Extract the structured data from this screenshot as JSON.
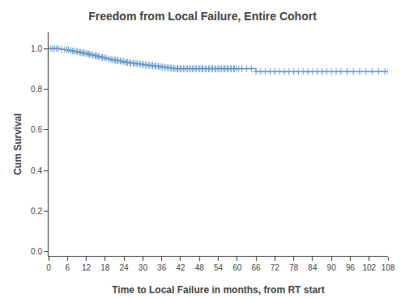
{
  "chart_data": {
    "type": "line",
    "title": "Freedom from Local Failure, Entire Cohort",
    "xlabel": "Time to Local Failure in months, from RT start",
    "ylabel": "Cum Survival",
    "xlim": [
      0,
      108
    ],
    "ylim": [
      -0.02,
      1.08
    ],
    "xticks": [
      0,
      6,
      12,
      18,
      24,
      30,
      36,
      42,
      48,
      54,
      60,
      66,
      72,
      78,
      84,
      90,
      96,
      102,
      108
    ],
    "yticks": [
      {
        "value": 0.0,
        "label": "0.0"
      },
      0.2,
      0.4,
      0.6,
      0.8,
      {
        "value": 1.0,
        "label": "1.0"
      }
    ],
    "grid": false,
    "series": [
      {
        "type": "line",
        "line_style": "step",
        "color": "#6699CC",
        "x": [
          0,
          1.0,
          2.0,
          3.0,
          3.5,
          4.0,
          4.5,
          5.0,
          5.5,
          6.0,
          6.5,
          7.0,
          7.5,
          8.0,
          8.5,
          9.0,
          9.5,
          10.0,
          10.5,
          11.0,
          11.5,
          12.0,
          12.5,
          13.0,
          13.5,
          14.0,
          14.5,
          15.0,
          15.5,
          16.0,
          16.5,
          17.0,
          17.5,
          18.0,
          19.0,
          20.0,
          21.0,
          22.0,
          23.0,
          24.0,
          25.0,
          26.0,
          27.0,
          28.0,
          29.0,
          30.0,
          31.0,
          32.0,
          33.0,
          34.0,
          35.0,
          36.0,
          37.0,
          38.0,
          39.0,
          40.0,
          41.0,
          42.0,
          43.0,
          44.0,
          45.0,
          46.0,
          47.0,
          48.0,
          49.0,
          50.0,
          51.0,
          52.0,
          53.0,
          54.0,
          55.0,
          56.0,
          57.0,
          58.0,
          59.0,
          60.0,
          61.0,
          62.0,
          63.0,
          64.0,
          65.0,
          66.0,
          67.0,
          68.0,
          69.0,
          70.0,
          71.0,
          72.0,
          73.0,
          74.0,
          75.0,
          76.0,
          77.0,
          78.0,
          80.0,
          82.0,
          84.0,
          86.0,
          88.0,
          90.0,
          92.0,
          94.0,
          96.0,
          98.0,
          100.0,
          102.0,
          104.0,
          106.0,
          108.0
        ],
        "values": [
          1.0,
          1.0,
          1.0,
          1.0,
          0.998,
          0.997,
          0.996,
          0.995,
          0.994,
          0.993,
          0.991,
          0.99,
          0.988,
          0.987,
          0.985,
          0.984,
          0.982,
          0.981,
          0.979,
          0.978,
          0.977,
          0.976,
          0.974,
          0.972,
          0.97,
          0.968,
          0.966,
          0.964,
          0.962,
          0.96,
          0.958,
          0.956,
          0.955,
          0.953,
          0.948,
          0.944,
          0.942,
          0.94,
          0.937,
          0.933,
          0.931,
          0.929,
          0.927,
          0.925,
          0.923,
          0.921,
          0.919,
          0.917,
          0.915,
          0.913,
          0.911,
          0.909,
          0.907,
          0.905,
          0.903,
          0.901,
          0.901,
          0.901,
          0.901,
          0.901,
          0.901,
          0.901,
          0.901,
          0.901,
          0.901,
          0.901,
          0.901,
          0.901,
          0.901,
          0.901,
          0.901,
          0.901,
          0.901,
          0.901,
          0.901,
          0.901,
          0.901,
          0.901,
          0.901,
          0.901,
          0.901,
          0.887,
          0.887,
          0.887,
          0.887,
          0.887,
          0.887,
          0.887,
          0.887,
          0.887,
          0.887,
          0.887,
          0.887,
          0.887,
          0.887,
          0.887,
          0.887,
          0.887,
          0.887,
          0.887,
          0.887,
          0.887,
          0.887,
          0.887,
          0.887,
          0.887,
          0.887,
          0.887,
          0.887
        ]
      },
      {
        "type": "scatter",
        "marker": "+",
        "color": "#6699CC",
        "x": [
          0.5,
          1.2,
          1.8,
          2.5,
          3.1,
          4.2,
          5.1,
          5.8,
          6.3,
          7.0,
          7.6,
          8.1,
          8.8,
          9.2,
          9.9,
          10.3,
          10.9,
          11.1,
          11.6,
          12.2,
          12.7,
          13.0,
          13.6,
          14.1,
          14.8,
          15.2,
          15.7,
          16.1,
          16.9,
          17.2,
          17.8,
          18.3,
          19.1,
          19.8,
          20.2,
          20.9,
          21.3,
          21.9,
          22.1,
          22.8,
          23.2,
          23.8,
          24.3,
          24.9,
          25.1,
          25.8,
          26.2,
          26.9,
          27.1,
          27.8,
          28.2,
          28.9,
          29.1,
          29.8,
          30.2,
          30.9,
          31.1,
          31.8,
          32.2,
          32.9,
          33.1,
          33.8,
          34.2,
          34.9,
          35.1,
          35.8,
          36.2,
          36.9,
          37.1,
          37.8,
          38.2,
          38.9,
          39.1,
          39.8,
          40.2,
          40.9,
          41.1,
          41.8,
          42.2,
          42.9,
          43.1,
          43.8,
          44.2,
          44.9,
          45.1,
          45.8,
          46.2,
          46.9,
          47.1,
          47.8,
          48.2,
          48.9,
          49.1,
          49.8,
          50.2,
          50.9,
          51.1,
          51.8,
          52.2,
          52.9,
          53.1,
          53.8,
          54.2,
          54.9,
          55.1,
          55.8,
          56.2,
          56.9,
          57.1,
          57.8,
          58.2,
          58.9,
          59.1,
          59.8,
          60.5,
          61.5,
          63.0,
          64.5,
          66.0,
          67.5,
          69.0,
          70.5,
          72.0,
          73.5,
          75.0,
          76.5,
          78.0,
          79.5,
          81.0,
          82.5,
          84.0,
          85.5,
          87.0,
          88.5,
          90.0,
          91.5,
          93.0,
          95.0,
          97.0,
          99.0,
          101.0,
          103.0,
          105.0,
          107.0,
          108.0
        ],
        "values": [
          1.0,
          1.0,
          1.0,
          1.0,
          1.0,
          0.997,
          0.995,
          0.994,
          0.993,
          0.99,
          0.988,
          0.987,
          0.985,
          0.984,
          0.982,
          0.981,
          0.979,
          0.978,
          0.977,
          0.976,
          0.974,
          0.972,
          0.97,
          0.968,
          0.966,
          0.964,
          0.962,
          0.96,
          0.958,
          0.956,
          0.955,
          0.953,
          0.948,
          0.948,
          0.944,
          0.944,
          0.942,
          0.942,
          0.94,
          0.94,
          0.937,
          0.937,
          0.933,
          0.933,
          0.931,
          0.931,
          0.929,
          0.929,
          0.927,
          0.927,
          0.925,
          0.925,
          0.923,
          0.923,
          0.921,
          0.921,
          0.919,
          0.919,
          0.917,
          0.917,
          0.915,
          0.915,
          0.913,
          0.913,
          0.911,
          0.911,
          0.909,
          0.909,
          0.907,
          0.907,
          0.905,
          0.905,
          0.903,
          0.903,
          0.901,
          0.901,
          0.901,
          0.901,
          0.901,
          0.901,
          0.901,
          0.901,
          0.901,
          0.901,
          0.901,
          0.901,
          0.901,
          0.901,
          0.901,
          0.901,
          0.901,
          0.901,
          0.901,
          0.901,
          0.901,
          0.901,
          0.901,
          0.901,
          0.901,
          0.901,
          0.901,
          0.901,
          0.901,
          0.901,
          0.901,
          0.901,
          0.901,
          0.901,
          0.901,
          0.901,
          0.901,
          0.901,
          0.901,
          0.901,
          0.901,
          0.901,
          0.901,
          0.901,
          0.887,
          0.887,
          0.887,
          0.887,
          0.887,
          0.887,
          0.887,
          0.887,
          0.887,
          0.887,
          0.887,
          0.887,
          0.887,
          0.887,
          0.887,
          0.887,
          0.887,
          0.887,
          0.887,
          0.887,
          0.887,
          0.887,
          0.887,
          0.887,
          0.887,
          0.887,
          0.887
        ]
      }
    ]
  }
}
